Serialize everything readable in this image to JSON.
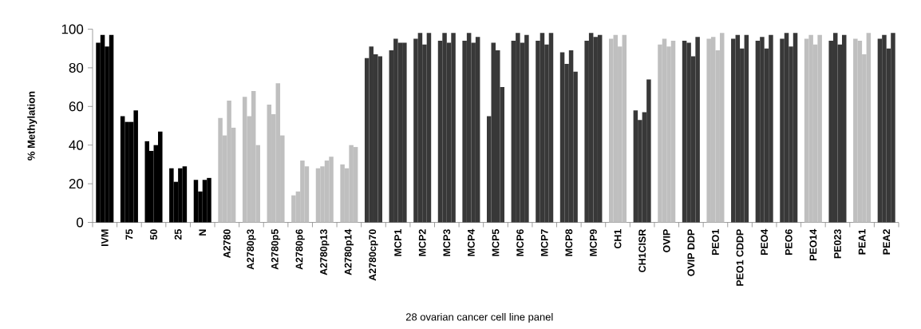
{
  "chart_data": {
    "type": "bar",
    "ylabel": "% Methylation",
    "xlabel": "28 ovarian cancer cell line panel",
    "categories": [
      "IVM",
      "75",
      "50",
      "25",
      "N",
      "A2780",
      "A2780p3",
      "A2780p5",
      "A2780p6",
      "A2780p13",
      "A2780p14",
      "A2780cp70",
      "MCP1",
      "MCP2",
      "MCP3",
      "MCP4",
      "MCP5",
      "MCP6",
      "MCP7",
      "MCP8",
      "MCP9",
      "CH1",
      "CH1CISR",
      "OVIP",
      "OVIP DDP",
      "PEO1",
      "PEO1 CDDP",
      "PEO4",
      "PEO6",
      "PEO14",
      "PE023",
      "PEA1",
      "PEA2"
    ],
    "series": [
      {
        "values": [
          93,
          55,
          42,
          28,
          22,
          54,
          65,
          61,
          14,
          28,
          30,
          85,
          89,
          95,
          94,
          94,
          55,
          94,
          94,
          88,
          94,
          95,
          58,
          92,
          94,
          95,
          95,
          94,
          95,
          95,
          94,
          95,
          95
        ],
        "colors": [
          "#000000",
          "#000000",
          "#000000",
          "#000000",
          "#000000",
          "#bfbfbf",
          "#bfbfbf",
          "#bfbfbf",
          "#bfbfbf",
          "#bfbfbf",
          "#bfbfbf",
          "#383838",
          "#383838",
          "#383838",
          "#383838",
          "#383838",
          "#383838",
          "#383838",
          "#383838",
          "#383838",
          "#383838",
          "#bfbfbf",
          "#383838",
          "#bfbfbf",
          "#383838",
          "#bfbfbf",
          "#383838",
          "#383838",
          "#383838",
          "#bfbfbf",
          "#383838",
          "#bfbfbf",
          "#383838"
        ]
      },
      {
        "values": [
          97,
          52,
          37,
          21,
          16,
          45,
          55,
          56,
          16,
          29,
          28,
          91,
          95,
          98,
          98,
          98,
          93,
          98,
          98,
          82,
          98,
          97,
          53,
          95,
          93,
          96,
          97,
          96,
          98,
          97,
          98,
          94,
          97
        ],
        "colors": [
          "#000000",
          "#000000",
          "#000000",
          "#000000",
          "#000000",
          "#bfbfbf",
          "#bfbfbf",
          "#bfbfbf",
          "#bfbfbf",
          "#bfbfbf",
          "#bfbfbf",
          "#383838",
          "#383838",
          "#383838",
          "#383838",
          "#383838",
          "#383838",
          "#383838",
          "#383838",
          "#383838",
          "#383838",
          "#bfbfbf",
          "#383838",
          "#bfbfbf",
          "#383838",
          "#bfbfbf",
          "#383838",
          "#383838",
          "#383838",
          "#bfbfbf",
          "#383838",
          "#bfbfbf",
          "#383838"
        ]
      },
      {
        "values": [
          91,
          52,
          40,
          28,
          22,
          63,
          68,
          72,
          32,
          32,
          40,
          87,
          93,
          92,
          93,
          93,
          89,
          93,
          92,
          89,
          96,
          91,
          57,
          91,
          86,
          89,
          90,
          90,
          91,
          92,
          92,
          87,
          90
        ],
        "colors": [
          "#000000",
          "#000000",
          "#000000",
          "#000000",
          "#000000",
          "#bfbfbf",
          "#bfbfbf",
          "#bfbfbf",
          "#bfbfbf",
          "#bfbfbf",
          "#bfbfbf",
          "#383838",
          "#383838",
          "#383838",
          "#383838",
          "#383838",
          "#383838",
          "#383838",
          "#383838",
          "#383838",
          "#383838",
          "#bfbfbf",
          "#383838",
          "#bfbfbf",
          "#383838",
          "#bfbfbf",
          "#383838",
          "#383838",
          "#383838",
          "#bfbfbf",
          "#383838",
          "#bfbfbf",
          "#383838"
        ]
      },
      {
        "values": [
          97,
          58,
          47,
          29,
          23,
          49,
          40,
          45,
          29,
          34,
          39,
          86,
          93,
          98,
          98,
          96,
          70,
          97,
          98,
          78,
          97,
          97,
          74,
          94,
          96,
          98,
          97,
          97,
          98,
          97,
          97,
          98,
          98
        ],
        "colors": [
          "#000000",
          "#000000",
          "#000000",
          "#000000",
          "#000000",
          "#bfbfbf",
          "#bfbfbf",
          "#bfbfbf",
          "#bfbfbf",
          "#bfbfbf",
          "#bfbfbf",
          "#383838",
          "#383838",
          "#383838",
          "#383838",
          "#383838",
          "#383838",
          "#383838",
          "#383838",
          "#383838",
          "#383838",
          "#bfbfbf",
          "#383838",
          "#bfbfbf",
          "#383838",
          "#bfbfbf",
          "#383838",
          "#383838",
          "#383838",
          "#bfbfbf",
          "#383838",
          "#bfbfbf",
          "#383838"
        ]
      }
    ],
    "ylim": [
      0,
      100
    ],
    "yticks": [
      0,
      20,
      40,
      60,
      80,
      100
    ]
  }
}
